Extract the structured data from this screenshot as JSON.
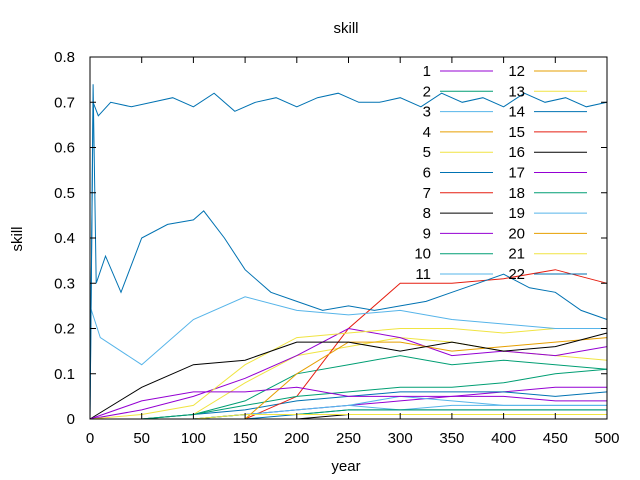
{
  "chart_data": {
    "type": "line",
    "title": "skill",
    "xlabel": "year",
    "ylabel": "skill",
    "xlim": [
      0,
      500
    ],
    "ylim": [
      0,
      0.8
    ],
    "xticks": [
      0,
      50,
      100,
      150,
      200,
      250,
      300,
      350,
      400,
      450,
      500
    ],
    "yticks": [
      0,
      0.1,
      0.2,
      0.3,
      0.4,
      0.5,
      0.6,
      0.7,
      0.8
    ],
    "grid": false,
    "legend": "top-right",
    "series": [
      {
        "name": "1",
        "color": "#9400d3",
        "x": [
          0,
          50,
          100,
          150,
          200,
          250,
          300,
          350,
          400,
          450,
          500
        ],
        "y": [
          0.0,
          0.0,
          0.0,
          0.01,
          0.02,
          0.03,
          0.04,
          0.05,
          0.06,
          0.07,
          0.07
        ]
      },
      {
        "name": "2",
        "color": "#009e73",
        "x": [
          0,
          50,
          100,
          150,
          200,
          250,
          300,
          350,
          400,
          450,
          500
        ],
        "y": [
          0.0,
          0.0,
          0.01,
          0.04,
          0.1,
          0.12,
          0.14,
          0.12,
          0.13,
          0.12,
          0.11
        ]
      },
      {
        "name": "3",
        "color": "#56b4e9",
        "x": [
          0,
          50,
          100,
          150,
          200,
          250,
          300,
          350,
          400,
          450,
          500
        ],
        "y": [
          0.0,
          0.0,
          0.0,
          0.01,
          0.02,
          0.03,
          0.02,
          0.03,
          0.03,
          0.03,
          0.03
        ]
      },
      {
        "name": "4",
        "color": "#e69f00",
        "x": [
          0,
          50,
          100,
          150,
          200,
          250,
          300,
          350,
          400,
          450,
          500
        ],
        "y": [
          0.0,
          0.0,
          0.0,
          0.0,
          0.0,
          0.0,
          0.0,
          0.0,
          0.0,
          0.0,
          0.0
        ]
      },
      {
        "name": "5",
        "color": "#f0e442",
        "x": [
          0,
          50,
          100,
          150,
          200,
          250,
          300,
          350,
          400,
          450,
          500
        ],
        "y": [
          0.0,
          0.0,
          0.01,
          0.08,
          0.14,
          0.16,
          0.18,
          0.17,
          0.15,
          0.14,
          0.13
        ]
      },
      {
        "name": "6",
        "color": "#0072b2",
        "x": [
          0,
          50,
          100,
          150,
          200,
          250,
          300,
          350,
          400,
          450,
          500
        ],
        "y": [
          0.0,
          0.0,
          0.01,
          0.02,
          0.04,
          0.05,
          0.06,
          0.06,
          0.06,
          0.05,
          0.06
        ]
      },
      {
        "name": "7",
        "color": "#e51e10",
        "x": [
          0,
          50,
          100,
          150,
          200,
          250,
          300,
          350,
          400,
          450,
          500
        ],
        "y": [
          0.0,
          0.0,
          0.0,
          0.0,
          0.05,
          0.2,
          0.3,
          0.3,
          0.31,
          0.33,
          0.3
        ]
      },
      {
        "name": "8",
        "color": "#000000",
        "x": [
          0,
          50,
          100,
          150,
          200,
          250,
          300,
          350,
          400,
          450,
          500
        ],
        "y": [
          0.0,
          0.0,
          0.0,
          0.0,
          0.0,
          0.01,
          0.01,
          0.01,
          0.01,
          0.01,
          0.01
        ]
      },
      {
        "name": "9",
        "color": "#9400d3",
        "x": [
          0,
          50,
          100,
          150,
          200,
          250,
          300,
          350,
          400,
          450,
          500
        ],
        "y": [
          0.0,
          0.02,
          0.05,
          0.09,
          0.14,
          0.2,
          0.18,
          0.14,
          0.15,
          0.14,
          0.16
        ]
      },
      {
        "name": "10",
        "color": "#009e73",
        "x": [
          0,
          50,
          100,
          150,
          200,
          250,
          300,
          350,
          400,
          450,
          500
        ],
        "y": [
          0.0,
          0.0,
          0.01,
          0.03,
          0.05,
          0.06,
          0.07,
          0.07,
          0.08,
          0.1,
          0.11
        ]
      },
      {
        "name": "11",
        "color": "#56b4e9",
        "x": [
          0,
          50,
          100,
          150,
          200,
          250,
          300,
          350,
          400,
          450,
          500
        ],
        "y": [
          0.0,
          0.0,
          0.0,
          0.01,
          0.02,
          0.03,
          0.05,
          0.04,
          0.03,
          0.03,
          0.03
        ]
      },
      {
        "name": "12",
        "color": "#e69f00",
        "x": [
          0,
          50,
          100,
          150,
          200,
          250,
          300,
          350,
          400,
          450,
          500
        ],
        "y": [
          0.0,
          0.0,
          0.0,
          0.0,
          0.1,
          0.17,
          0.17,
          0.15,
          0.16,
          0.17,
          0.18
        ]
      },
      {
        "name": "13",
        "color": "#f0e442",
        "x": [
          0,
          50,
          100,
          150,
          200,
          250,
          300,
          350,
          400,
          450,
          500
        ],
        "y": [
          0.0,
          0.01,
          0.03,
          0.12,
          0.18,
          0.19,
          0.2,
          0.2,
          0.19,
          0.2,
          0.2
        ]
      },
      {
        "name": "14",
        "color": "#0072b2",
        "x": [
          0,
          50,
          100,
          150,
          200,
          250,
          300,
          350,
          400,
          450,
          500
        ],
        "y": [
          0.0,
          0.0,
          0.0,
          0.0,
          0.01,
          0.02,
          0.02,
          0.02,
          0.02,
          0.02,
          0.02
        ]
      },
      {
        "name": "15",
        "color": "#e51e10",
        "x": [
          0,
          50,
          100,
          150,
          200,
          250,
          300,
          350,
          400,
          450,
          500
        ],
        "y": [
          0.0,
          0.0,
          0.0,
          0.0,
          0.0,
          0.0,
          0.0,
          0.0,
          0.0,
          0.0,
          0.0
        ]
      },
      {
        "name": "16",
        "color": "#000000",
        "x": [
          0,
          50,
          100,
          150,
          200,
          250,
          300,
          350,
          400,
          450,
          500
        ],
        "y": [
          0.0,
          0.07,
          0.12,
          0.13,
          0.17,
          0.17,
          0.15,
          0.17,
          0.15,
          0.16,
          0.19
        ]
      },
      {
        "name": "17",
        "color": "#9400d3",
        "x": [
          0,
          50,
          100,
          150,
          200,
          250,
          300,
          350,
          400,
          450,
          500
        ],
        "y": [
          0.0,
          0.04,
          0.06,
          0.06,
          0.07,
          0.05,
          0.05,
          0.05,
          0.05,
          0.04,
          0.04
        ]
      },
      {
        "name": "18",
        "color": "#009e73",
        "x": [
          0,
          50,
          100,
          150,
          200,
          250,
          300,
          350,
          400,
          450,
          500
        ],
        "y": [
          0.0,
          0.0,
          0.0,
          0.01,
          0.01,
          0.02,
          0.02,
          0.02,
          0.02,
          0.02,
          0.02
        ]
      },
      {
        "name": "19",
        "color": "#56b4e9",
        "x": [
          0,
          10,
          50,
          100,
          150,
          200,
          250,
          300,
          350,
          400,
          450,
          500
        ],
        "y": [
          0.25,
          0.18,
          0.12,
          0.22,
          0.27,
          0.24,
          0.23,
          0.24,
          0.22,
          0.21,
          0.2,
          0.2
        ]
      },
      {
        "name": "20",
        "color": "#e69f00",
        "x": [
          0,
          50,
          100,
          150,
          200,
          250,
          300,
          350,
          400,
          450,
          500
        ],
        "y": [
          0.0,
          0.0,
          0.0,
          0.0,
          0.0,
          0.0,
          0.0,
          0.0,
          0.0,
          0.0,
          0.0
        ]
      },
      {
        "name": "21",
        "color": "#f0e442",
        "x": [
          0,
          50,
          100,
          150,
          200,
          250,
          300,
          350,
          400,
          450,
          500
        ],
        "y": [
          0.0,
          0.0,
          0.0,
          0.01,
          0.01,
          0.01,
          0.01,
          0.01,
          0.01,
          0.01,
          0.01
        ]
      },
      {
        "name": "22",
        "color": "#0072b2",
        "x": [
          0,
          3,
          6,
          15,
          30,
          50,
          75,
          100,
          110,
          130,
          150,
          175,
          200,
          225,
          250,
          275,
          300,
          325,
          350,
          375,
          400,
          425,
          450,
          475,
          500
        ],
        "y": [
          0.0,
          0.74,
          0.3,
          0.36,
          0.28,
          0.4,
          0.43,
          0.44,
          0.46,
          0.4,
          0.33,
          0.28,
          0.26,
          0.24,
          0.25,
          0.24,
          0.25,
          0.26,
          0.28,
          0.3,
          0.32,
          0.29,
          0.28,
          0.24,
          0.22
        ]
      },
      {
        "name": "",
        "color": "#0072b2",
        "x": [
          0,
          3,
          8,
          20,
          40,
          60,
          80,
          100,
          120,
          140,
          160,
          180,
          200,
          220,
          240,
          260,
          280,
          300,
          320,
          340,
          360,
          380,
          400,
          420,
          440,
          460,
          480,
          500
        ],
        "y": [
          0.0,
          0.7,
          0.67,
          0.7,
          0.69,
          0.7,
          0.71,
          0.69,
          0.72,
          0.68,
          0.7,
          0.71,
          0.69,
          0.71,
          0.72,
          0.7,
          0.7,
          0.71,
          0.69,
          0.72,
          0.7,
          0.71,
          0.69,
          0.72,
          0.7,
          0.71,
          0.69,
          0.7
        ]
      }
    ]
  }
}
